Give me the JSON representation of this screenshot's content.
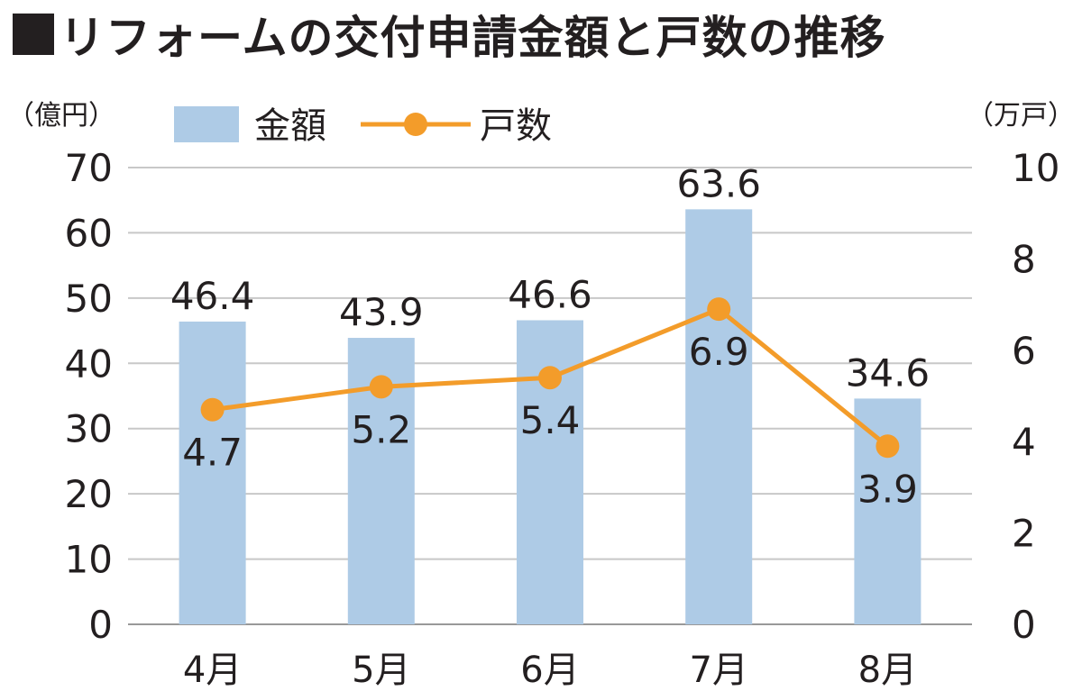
{
  "title": "リフォームの交付申請金額と戸数の推移",
  "chart_data": {
    "type": "bar+line",
    "categories": [
      "4月",
      "5月",
      "6月",
      "7月",
      "8月"
    ],
    "series": [
      {
        "name": "金額",
        "type": "bar",
        "axis": "left",
        "values": [
          46.4,
          43.9,
          46.6,
          63.6,
          34.6
        ],
        "labels": [
          "46.4",
          "43.9",
          "46.6",
          "63.6",
          "34.6"
        ],
        "color": "#aecbe6"
      },
      {
        "name": "戸数",
        "type": "line",
        "axis": "right",
        "values": [
          4.7,
          5.2,
          5.4,
          6.9,
          3.9
        ],
        "labels": [
          "4.7",
          "5.2",
          "5.4",
          "6.9",
          "3.9"
        ],
        "color": "#f39c2a"
      }
    ],
    "y_left": {
      "unit": "（億円）",
      "range": [
        0,
        70
      ],
      "ticks": [
        "0",
        "10",
        "20",
        "30",
        "40",
        "50",
        "60",
        "70"
      ]
    },
    "y_right": {
      "unit": "（万戸）",
      "range": [
        0,
        10
      ],
      "ticks": [
        "0",
        "2",
        "4",
        "6",
        "8",
        "10"
      ]
    },
    "grid": true,
    "legend_position": "top"
  }
}
